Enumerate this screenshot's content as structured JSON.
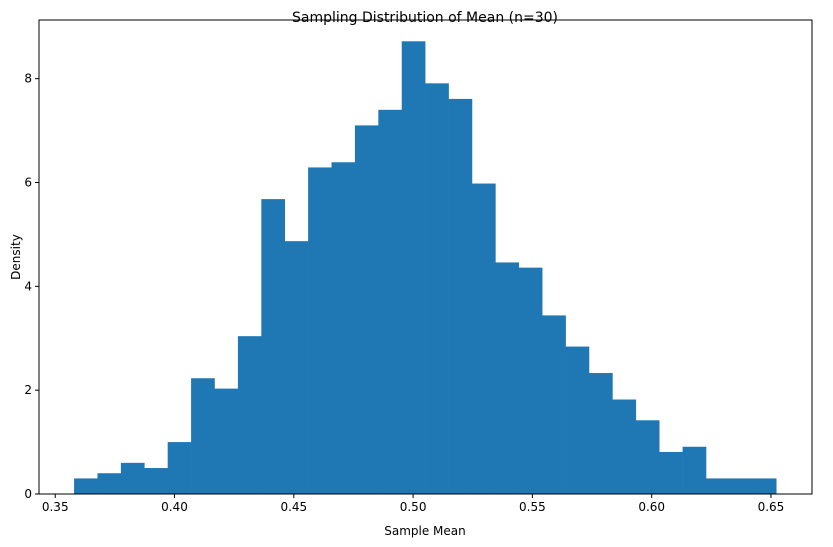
{
  "chart_data": {
    "type": "bar",
    "subtype": "histogram",
    "title": "Sampling Distribution of Mean (n=30)",
    "xlabel": "Sample Mean",
    "ylabel": "Density",
    "bar_color": "#1f77b4",
    "grid": false,
    "xlim": [
      0.3432,
      0.6672
    ],
    "ylim": [
      0,
      9.13
    ],
    "xticks": [
      {
        "value": 0.35,
        "label": "0.35"
      },
      {
        "value": 0.4,
        "label": "0.40"
      },
      {
        "value": 0.45,
        "label": "0.45"
      },
      {
        "value": 0.5,
        "label": "0.50"
      },
      {
        "value": 0.55,
        "label": "0.55"
      },
      {
        "value": 0.6,
        "label": "0.60"
      },
      {
        "value": 0.65,
        "label": "0.65"
      }
    ],
    "yticks": [
      {
        "value": 0,
        "label": "0"
      },
      {
        "value": 2,
        "label": "2"
      },
      {
        "value": 4,
        "label": "4"
      },
      {
        "value": 6,
        "label": "6"
      },
      {
        "value": 8,
        "label": "8"
      }
    ],
    "bin_start": 0.3579,
    "bin_width": 0.00981,
    "values": [
      0.3,
      0.4,
      0.6,
      0.5,
      1.0,
      2.23,
      2.03,
      3.04,
      5.68,
      4.87,
      6.29,
      6.39,
      7.1,
      7.4,
      8.72,
      7.91,
      7.61,
      5.98,
      4.46,
      4.36,
      3.44,
      2.84,
      2.33,
      1.82,
      1.42,
      0.81,
      0.91,
      0.3,
      0.3,
      0.3
    ]
  }
}
